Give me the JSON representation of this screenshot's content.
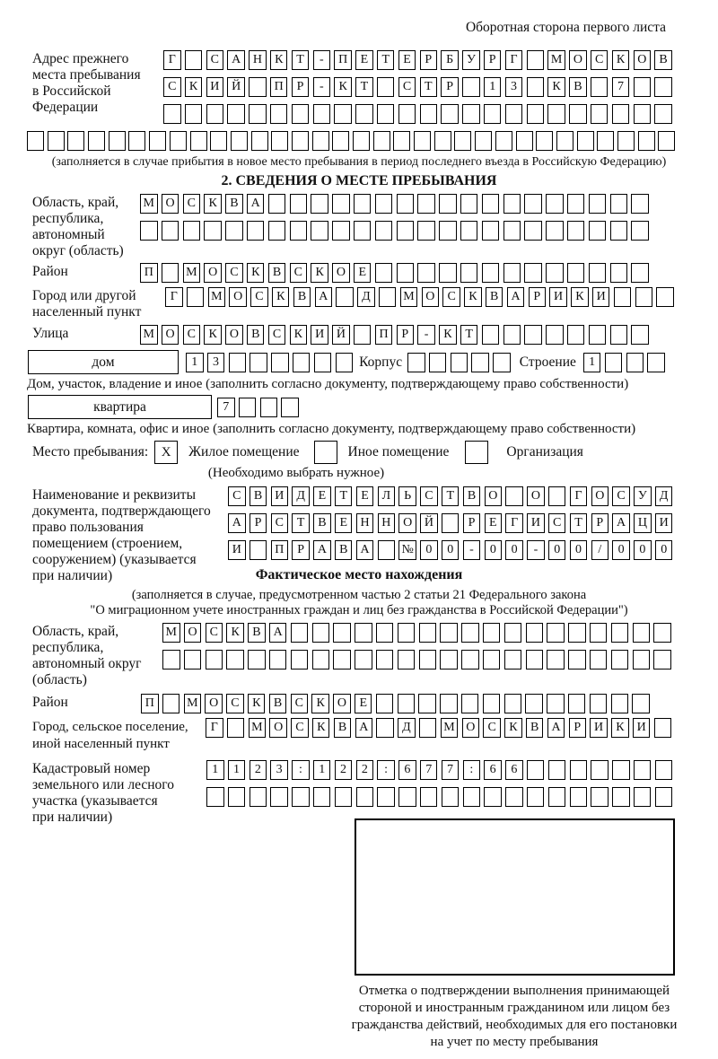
{
  "header": {
    "back_note": "Оборотная сторона первого листа"
  },
  "prev_address": {
    "label_lines": [
      "Адрес прежнего",
      "места пребывания",
      "в Российской",
      "Федерации"
    ],
    "rows": [
      {
        "len": 24,
        "text": "Г САНКТ-ПЕТЕРБУРГ МОСКОВ"
      },
      {
        "len": 24,
        "text": "СКИЙ ПР-КТ СТР 13 КВ 7"
      },
      {
        "len": 24,
        "text": ""
      },
      {
        "len": 32,
        "text": ""
      }
    ],
    "note": "(заполняется в случае прибытия в новое место пребывания в период последнего въезда в Российскую Федерацию)"
  },
  "section2": {
    "title": "2. СВЕДЕНИЯ О МЕСТЕ ПРЕБЫВАНИЯ",
    "region": {
      "label_lines": [
        "Область, край,",
        "республика,",
        "автономный",
        "округ (область)"
      ],
      "rows": [
        {
          "len": 24,
          "text": "МОСКВА"
        },
        {
          "len": 24,
          "text": ""
        }
      ]
    },
    "district": {
      "label": "Район",
      "row": {
        "len": 24,
        "text": "П МОСКВСКОЕ"
      }
    },
    "city": {
      "label_lines": [
        "Город или другой",
        "населенный пункт"
      ],
      "row": {
        "len": 24,
        "text": "Г МОСКВА Д МОСКВАРИКИ"
      }
    },
    "street": {
      "label": "Улица",
      "row": {
        "len": 24,
        "text": "МОСКОВСКИЙ ПР-КТ"
      }
    },
    "house_line": {
      "house_label": "дом",
      "house_row": {
        "len": 8,
        "text": "13"
      },
      "korpus_label": "Корпус",
      "korpus_row": {
        "len": 5,
        "text": ""
      },
      "stroenie_label": "Строение",
      "stroenie_row": {
        "len": 4,
        "text": "1"
      }
    },
    "house_caption": "Дом, участок, владение и иное (заполнить согласно документу, подтверждающему право собственности)",
    "apartment_line": {
      "label": "квартира",
      "row": {
        "len": 4,
        "text": "7"
      }
    },
    "apartment_caption": "Квартира, комната, офис и иное (заполнить согласно документу, подтверждающему право собственности)",
    "stay_type": {
      "label": "Место пребывания:",
      "options": [
        {
          "label": "Жилое помещение",
          "mark": "X"
        },
        {
          "label": "Иное помещение",
          "mark": ""
        },
        {
          "label": "Организация",
          "mark": ""
        }
      ],
      "note": "(Необходимо выбрать нужное)"
    },
    "doc": {
      "label_lines": [
        "Наименование и реквизиты",
        "документа, подтверждающего",
        "право пользования",
        "помещением (строением,",
        "сооружением) (указывается",
        "при наличии)"
      ],
      "rows": [
        {
          "len": 21,
          "text": "СВИДЕТЕЛЬСТВО О ГОСУД"
        },
        {
          "len": 21,
          "text": "АРСТВЕННОЙ РЕГИСТРАЦИ"
        },
        {
          "len": 21,
          "text": "И ПРАВА №00-00-00/000"
        }
      ]
    }
  },
  "actual_location": {
    "title": "Фактическое место нахождения",
    "note_lines": [
      "(заполняется в случае, предусмотренном частью 2 статьи 21 Федерального закона",
      "\"О миграционном учете иностранных граждан и лиц без гражданства в Российской Федерации\")"
    ],
    "region": {
      "label_lines": [
        "Область, край,",
        "республика,",
        "автономный округ",
        "(область)"
      ],
      "rows": [
        {
          "len": 24,
          "text": "МОСКВА"
        },
        {
          "len": 24,
          "text": ""
        }
      ]
    },
    "district": {
      "label": "Район",
      "row": {
        "len": 24,
        "text": "П МОСКВСКОЕ"
      }
    },
    "city": {
      "label_lines": [
        "Город, сельское поселение,",
        "иной населенный пункт"
      ],
      "row": {
        "len": 22,
        "text": "Г МОСКВА Д МОСКВАРИКИ"
      }
    },
    "cadastre": {
      "label_lines": [
        "Кадастровый номер",
        "земельного или лесного",
        "участка (указывается",
        "при наличии)"
      ],
      "rows": [
        {
          "len": 22,
          "text": "1123:122:677:66"
        },
        {
          "len": 22,
          "text": ""
        }
      ]
    },
    "stamp_caption_lines": [
      "Отметка о подтверждении выполнения принимающей",
      "стороной и иностранным гражданином или лицом без",
      "гражданства действий, необходимых для его постановки",
      "на учет по месту пребывания"
    ]
  }
}
